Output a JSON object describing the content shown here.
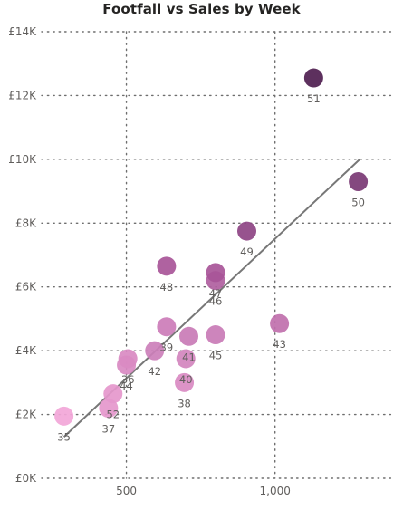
{
  "chart_data": {
    "type": "scatter",
    "title": "Footfall vs Sales by Week",
    "xlabel": "",
    "ylabel": "",
    "xlim": [
      215,
      1400
    ],
    "ylim": [
      0,
      14000
    ],
    "x_ticks": [
      {
        "value": 500,
        "label": "500"
      },
      {
        "value": 1000,
        "label": "1,000"
      }
    ],
    "y_ticks": [
      {
        "value": 0,
        "label": "£0K"
      },
      {
        "value": 2000,
        "label": "£2K"
      },
      {
        "value": 4000,
        "label": "£4K"
      },
      {
        "value": 6000,
        "label": "£6K"
      },
      {
        "value": 8000,
        "label": "£8K"
      },
      {
        "value": 10000,
        "label": "£10K"
      },
      {
        "value": 12000,
        "label": "£12K"
      },
      {
        "value": 14000,
        "label": "£14K"
      }
    ],
    "grid": "dotted",
    "points": [
      {
        "label": "35",
        "x": 290,
        "y": 1950,
        "color": "#f2a6d8"
      },
      {
        "label": "36",
        "x": 505,
        "y": 3750,
        "color": "#d98ac2"
      },
      {
        "label": "37",
        "x": 440,
        "y": 2200,
        "color": "#e597cc"
      },
      {
        "label": "38",
        "x": 695,
        "y": 3000,
        "color": "#d98ac2"
      },
      {
        "label": "39",
        "x": 635,
        "y": 4750,
        "color": "#cc7cb8"
      },
      {
        "label": "40",
        "x": 700,
        "y": 3750,
        "color": "#d286be"
      },
      {
        "label": "41",
        "x": 710,
        "y": 4450,
        "color": "#c97bb6"
      },
      {
        "label": "42",
        "x": 595,
        "y": 4000,
        "color": "#cc7fba"
      },
      {
        "label": "43",
        "x": 1015,
        "y": 4850,
        "color": "#c070ad"
      },
      {
        "label": "44",
        "x": 500,
        "y": 3550,
        "color": "#d98ac2"
      },
      {
        "label": "45",
        "x": 800,
        "y": 4500,
        "color": "#c97bb6"
      },
      {
        "label": "46",
        "x": 800,
        "y": 6200,
        "color": "#b060a0"
      },
      {
        "label": "47",
        "x": 800,
        "y": 6450,
        "color": "#a85598"
      },
      {
        "label": "48",
        "x": 635,
        "y": 6650,
        "color": "#a85598"
      },
      {
        "label": "49",
        "x": 905,
        "y": 7750,
        "color": "#8e4484"
      },
      {
        "label": "50",
        "x": 1280,
        "y": 9300,
        "color": "#7a3874"
      },
      {
        "label": "51",
        "x": 1130,
        "y": 12550,
        "color": "#4f1e50"
      },
      {
        "label": "52",
        "x": 455,
        "y": 2650,
        "color": "#e597cc"
      }
    ],
    "trend_line": {
      "x1": 290,
      "y1": 1300,
      "x2": 1285,
      "y2": 10000,
      "color": "#777777"
    }
  }
}
